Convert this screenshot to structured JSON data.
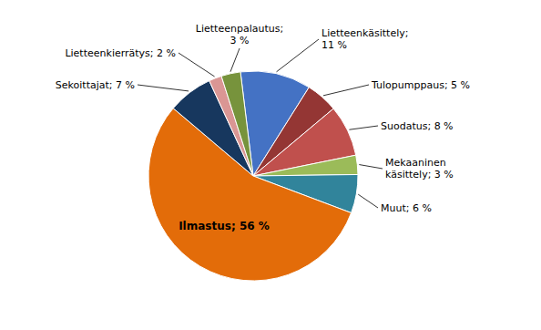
{
  "chart_data": {
    "type": "pie",
    "categories": [
      "Lietteenkäsittely;\n11 %",
      "Tulopumppaus; 5 %",
      "Suodatus; 8 %",
      "Mekaaninen\nkäsittely; 3 %",
      "Muut; 6 %",
      "Ilmastus; 56 %",
      "Sekoittajat; 7 %",
      "Lietteenkierrätys; 2 %",
      "Lietteenpalautus;\n3 %"
    ],
    "values": [
      11,
      5,
      8,
      3,
      6,
      56,
      7,
      2,
      3
    ],
    "colors": [
      "#4472C4",
      "#943634",
      "#C0504D",
      "#9BBB59",
      "#31849B",
      "#E36C09",
      "#17375E",
      "#DA9694",
      "#77933C"
    ]
  }
}
